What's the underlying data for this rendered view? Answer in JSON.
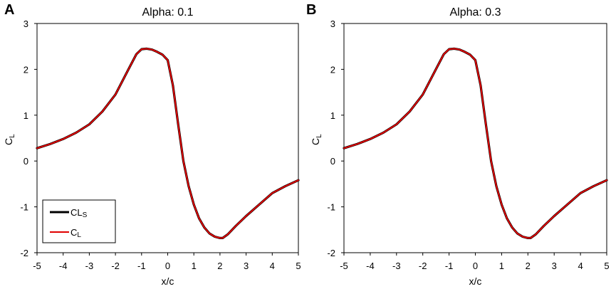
{
  "chart_data": [
    {
      "type": "line",
      "panel_label": "A",
      "title": "Alpha: 0.1",
      "xlabel": "x/c",
      "ylabel_main": "C",
      "ylabel_sub": "L",
      "xlim": [
        -5,
        5
      ],
      "ylim": [
        -2,
        3
      ],
      "xticks": [
        "-5",
        "-4",
        "-3",
        "-2",
        "-1",
        "0",
        "1",
        "2",
        "3",
        "4",
        "5"
      ],
      "yticks": [
        "-2",
        "-1",
        "0",
        "1",
        "2",
        "3"
      ],
      "legend": {
        "placement": "bottom-left",
        "entries": [
          {
            "main": "CL",
            "sub": "S",
            "color": "#000000"
          },
          {
            "main": "C",
            "sub": "L",
            "color": "#e00000"
          }
        ]
      },
      "series": [
        {
          "color": "#000000",
          "x": [
            -5,
            -4.5,
            -4,
            -3.5,
            -3,
            -2.5,
            -2,
            -1.5,
            -1.2,
            -1.0,
            -0.8,
            -0.6,
            -0.4,
            -0.2,
            0.0,
            0.2,
            0.4,
            0.6,
            0.8,
            1.0,
            1.2,
            1.4,
            1.6,
            1.8,
            2.0,
            2.1,
            2.3,
            2.6,
            3.0,
            3.5,
            4.0,
            4.5,
            5.0
          ],
          "y": [
            0.28,
            0.37,
            0.48,
            0.62,
            0.8,
            1.08,
            1.45,
            2.0,
            2.33,
            2.44,
            2.45,
            2.43,
            2.38,
            2.32,
            2.2,
            1.65,
            0.8,
            0.0,
            -0.55,
            -0.95,
            -1.25,
            -1.45,
            -1.58,
            -1.65,
            -1.68,
            -1.68,
            -1.6,
            -1.42,
            -1.2,
            -0.95,
            -0.7,
            -0.55,
            -0.42
          ]
        },
        {
          "color": "#e00000",
          "x": [
            -5,
            -4.5,
            -4,
            -3.5,
            -3,
            -2.5,
            -2,
            -1.5,
            -1.2,
            -1.0,
            -0.8,
            -0.6,
            -0.4,
            -0.2,
            0.0,
            0.2,
            0.4,
            0.6,
            0.8,
            1.0,
            1.2,
            1.4,
            1.6,
            1.8,
            2.0,
            2.1,
            2.3,
            2.6,
            3.0,
            3.5,
            4.0,
            4.5,
            5.0
          ],
          "y": [
            0.28,
            0.37,
            0.48,
            0.62,
            0.8,
            1.08,
            1.45,
            2.0,
            2.33,
            2.44,
            2.45,
            2.43,
            2.38,
            2.32,
            2.2,
            1.65,
            0.8,
            0.0,
            -0.55,
            -0.95,
            -1.25,
            -1.45,
            -1.58,
            -1.65,
            -1.68,
            -1.68,
            -1.6,
            -1.42,
            -1.2,
            -0.95,
            -0.7,
            -0.55,
            -0.42
          ]
        }
      ]
    },
    {
      "type": "line",
      "panel_label": "B",
      "title": "Alpha: 0.3",
      "xlabel": "x/c",
      "ylabel_main": "C",
      "ylabel_sub": "L",
      "xlim": [
        -5,
        5
      ],
      "ylim": [
        -2,
        3
      ],
      "xticks": [
        "-5",
        "-4",
        "-3",
        "-2",
        "-1",
        "0",
        "1",
        "2",
        "3",
        "4",
        "5"
      ],
      "yticks": [
        "-2",
        "-1",
        "0",
        "1",
        "2",
        "3"
      ],
      "series": [
        {
          "color": "#000000",
          "x": [
            -5,
            -4.5,
            -4,
            -3.5,
            -3,
            -2.5,
            -2,
            -1.5,
            -1.2,
            -1.0,
            -0.8,
            -0.6,
            -0.4,
            -0.2,
            0.0,
            0.2,
            0.4,
            0.6,
            0.8,
            1.0,
            1.2,
            1.4,
            1.6,
            1.8,
            2.0,
            2.1,
            2.3,
            2.6,
            3.0,
            3.5,
            4.0,
            4.5,
            5.0
          ],
          "y": [
            0.28,
            0.37,
            0.48,
            0.62,
            0.8,
            1.08,
            1.45,
            2.0,
            2.33,
            2.44,
            2.45,
            2.43,
            2.38,
            2.32,
            2.2,
            1.65,
            0.8,
            0.0,
            -0.55,
            -0.95,
            -1.25,
            -1.45,
            -1.58,
            -1.65,
            -1.68,
            -1.68,
            -1.6,
            -1.42,
            -1.2,
            -0.95,
            -0.7,
            -0.55,
            -0.42
          ]
        },
        {
          "color": "#e00000",
          "x": [
            -5,
            -4.5,
            -4,
            -3.5,
            -3,
            -2.5,
            -2,
            -1.5,
            -1.2,
            -1.0,
            -0.8,
            -0.6,
            -0.4,
            -0.2,
            0.0,
            0.2,
            0.4,
            0.6,
            0.8,
            1.0,
            1.2,
            1.4,
            1.6,
            1.8,
            2.0,
            2.1,
            2.3,
            2.6,
            3.0,
            3.5,
            4.0,
            4.5,
            5.0
          ],
          "y": [
            0.28,
            0.37,
            0.48,
            0.62,
            0.8,
            1.08,
            1.45,
            2.0,
            2.33,
            2.44,
            2.45,
            2.43,
            2.38,
            2.32,
            2.2,
            1.65,
            0.8,
            0.0,
            -0.55,
            -0.95,
            -1.25,
            -1.45,
            -1.58,
            -1.65,
            -1.68,
            -1.68,
            -1.6,
            -1.42,
            -1.2,
            -0.95,
            -0.7,
            -0.55,
            -0.42
          ]
        }
      ]
    }
  ]
}
